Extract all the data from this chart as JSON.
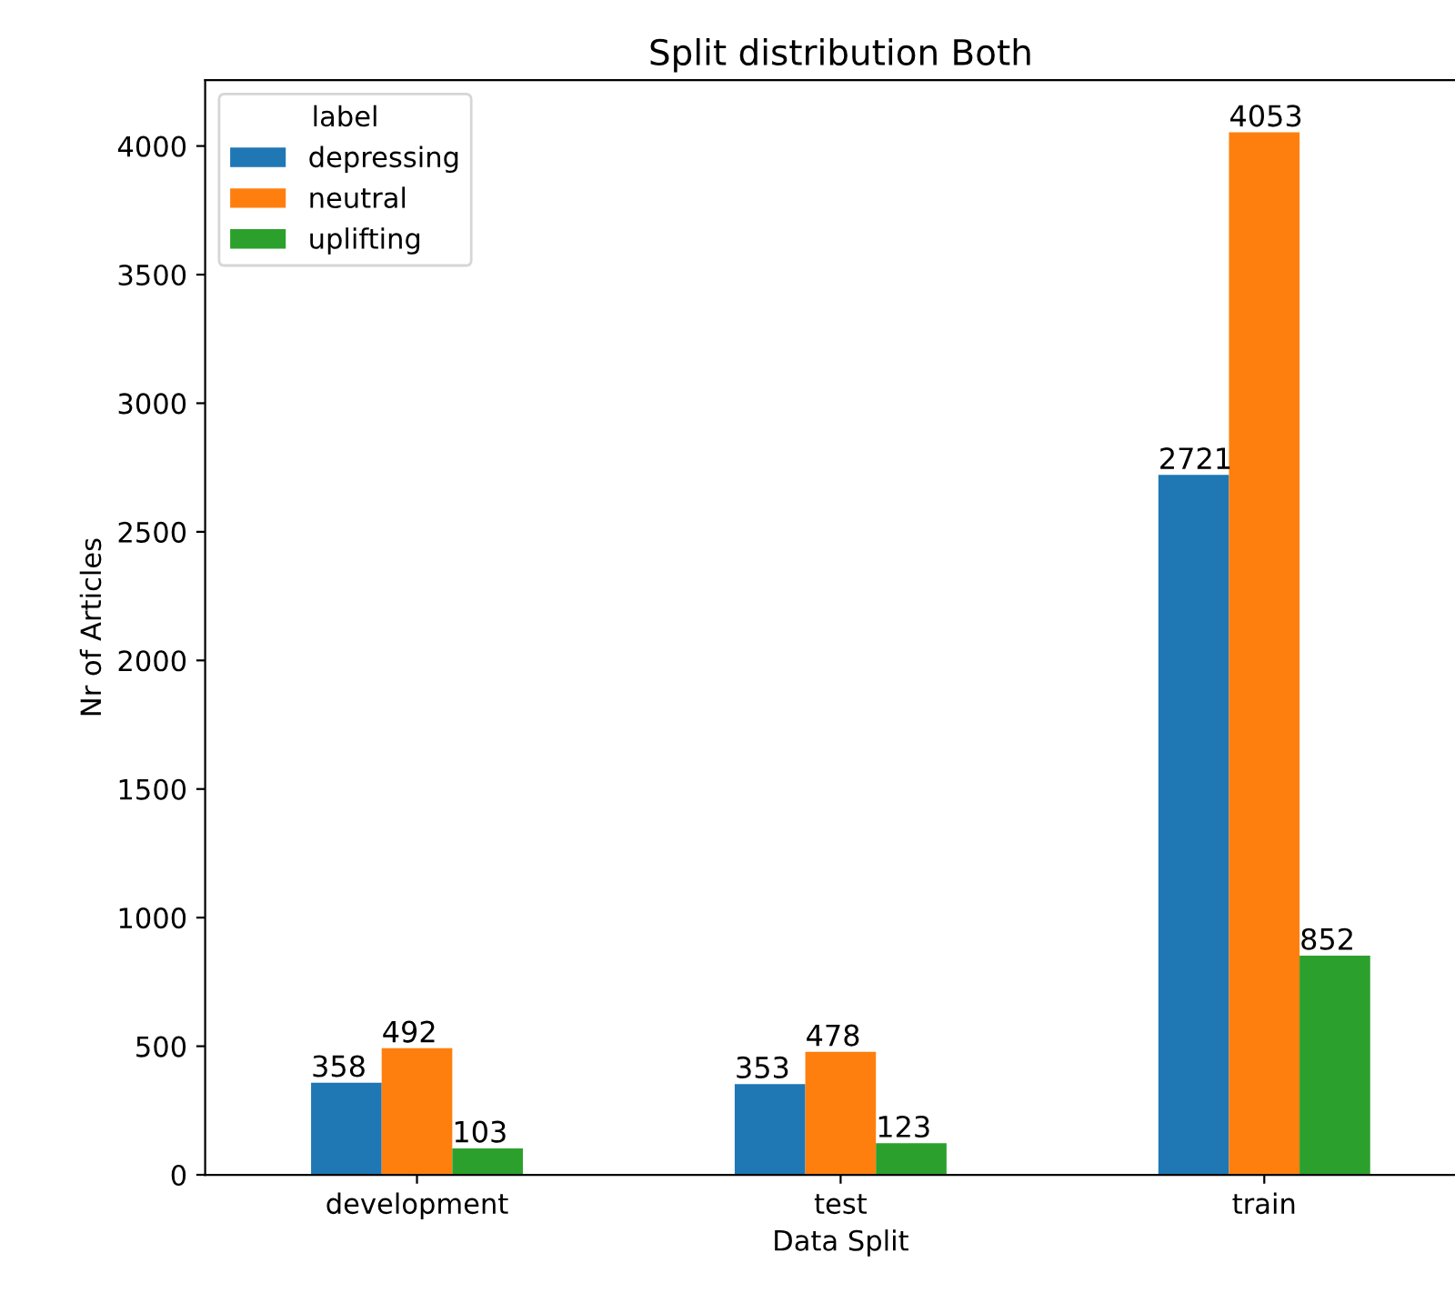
{
  "chart_data": {
    "type": "bar",
    "title": "Split distribution Both",
    "xlabel": "Data Split",
    "ylabel": "Nr of Articles",
    "legend_title": "label",
    "legend": "top left",
    "categories": [
      "development",
      "test",
      "train"
    ],
    "series": [
      {
        "name": "depressing",
        "color": "#1f77b4",
        "values": [
          358,
          353,
          2721
        ]
      },
      {
        "name": "neutral",
        "color": "#ff7f0e",
        "values": [
          492,
          478,
          4053
        ]
      },
      {
        "name": "uplifting",
        "color": "#2ca02c",
        "values": [
          103,
          123,
          852
        ]
      }
    ],
    "ylim": [
      0,
      4256
    ],
    "yticks": [
      0,
      500,
      1000,
      1500,
      2000,
      2500,
      3000,
      3500,
      4000
    ],
    "data_labels": true,
    "grid": false
  }
}
